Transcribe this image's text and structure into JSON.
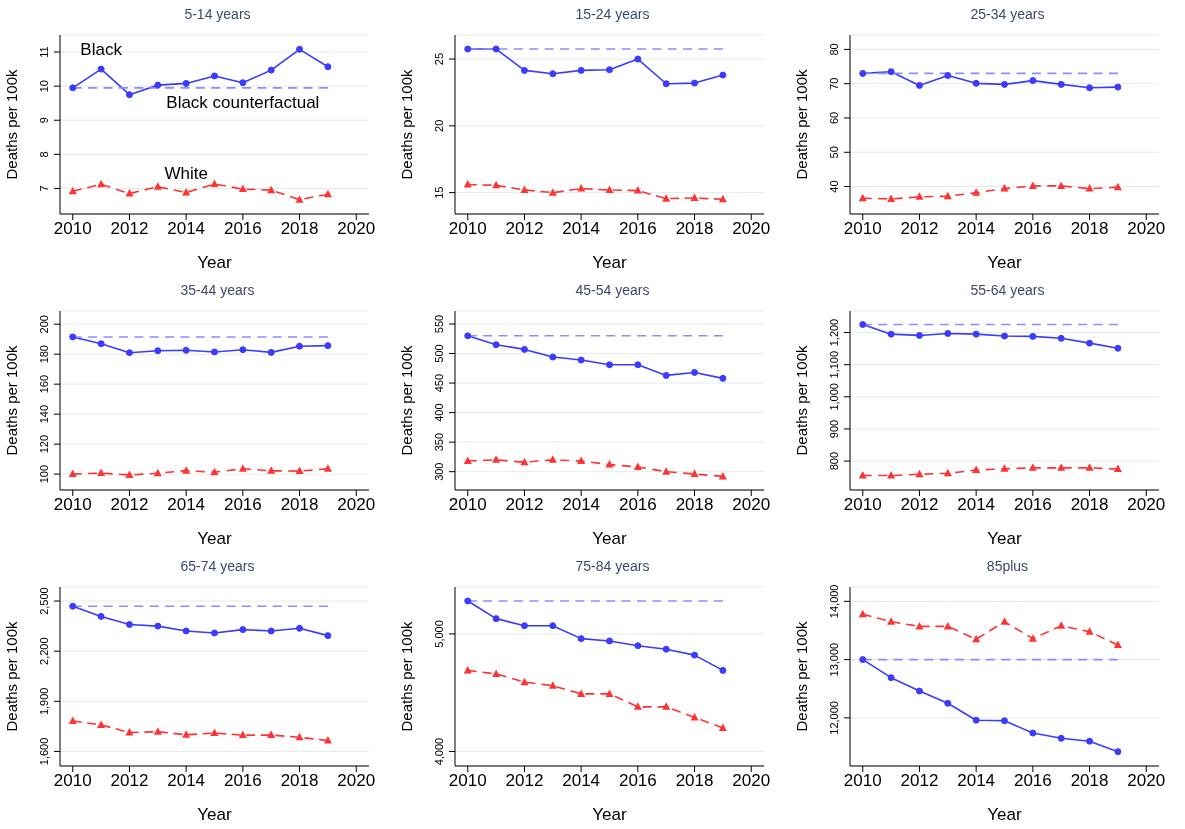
{
  "chart_data": [
    {
      "type": "line",
      "title": "5-14 years",
      "xlabel": "Year",
      "ylabel": "Deaths per 100k",
      "x": [
        2010,
        2011,
        2012,
        2013,
        2014,
        2015,
        2016,
        2017,
        2018,
        2019
      ],
      "series": [
        {
          "name": "Black",
          "color": "#3b3bff",
          "marker": "circle",
          "line_style": "solid",
          "values": [
            9.95,
            10.5,
            9.75,
            10.03,
            10.08,
            10.3,
            10.1,
            10.47,
            11.08,
            10.57
          ]
        },
        {
          "name": "Black counterfactual",
          "color": "#8c8cff",
          "marker": "none",
          "line_style": "dashed",
          "values": [
            9.95,
            9.95,
            9.95,
            9.95,
            9.95,
            9.95,
            9.95,
            9.95,
            9.95,
            9.95
          ]
        },
        {
          "name": "White",
          "color": "#ff3333",
          "marker": "triangle",
          "line_style": "dashed",
          "values": [
            6.92,
            7.12,
            6.85,
            7.05,
            6.88,
            7.13,
            6.98,
            6.95,
            6.67,
            6.83
          ]
        }
      ],
      "xlim": [
        2009.55,
        2020.45
      ],
      "xticks": [
        2010,
        2012,
        2014,
        2016,
        2018,
        2020
      ],
      "ylim": [
        6.25,
        11.5
      ],
      "yticks": [
        7,
        8,
        9,
        10,
        11
      ],
      "grid": "y",
      "legend": false
    },
    {
      "type": "line",
      "title": "15-24 years",
      "xlabel": "Year",
      "ylabel": "Deaths per 100k",
      "x": [
        2010,
        2011,
        2012,
        2013,
        2014,
        2015,
        2016,
        2017,
        2018,
        2019
      ],
      "series": [
        {
          "color": "#3b3bff",
          "marker": "circle",
          "line_style": "solid",
          "values": [
            25.75,
            25.75,
            24.15,
            23.9,
            24.15,
            24.2,
            25.0,
            23.15,
            23.2,
            23.8
          ]
        },
        {
          "color": "#8c8cff",
          "marker": "none",
          "line_style": "dashed",
          "values": [
            25.75,
            25.75,
            25.75,
            25.75,
            25.75,
            25.75,
            25.75,
            25.75,
            25.75,
            25.75
          ]
        },
        {
          "color": "#ff3333",
          "marker": "triangle",
          "line_style": "dashed",
          "values": [
            15.6,
            15.55,
            15.2,
            15.0,
            15.3,
            15.2,
            15.15,
            14.55,
            14.6,
            14.5
          ]
        }
      ],
      "xlim": [
        2009.55,
        2020.45
      ],
      "xticks": [
        2010,
        2012,
        2014,
        2016,
        2018,
        2020
      ],
      "ylim": [
        13.4,
        26.8
      ],
      "yticks": [
        15,
        20,
        25
      ],
      "grid": "y",
      "legend": false
    },
    {
      "type": "line",
      "title": "25-34 years",
      "xlabel": "Year",
      "ylabel": "Deaths per 100k",
      "x": [
        2010,
        2011,
        2012,
        2013,
        2014,
        2015,
        2016,
        2017,
        2018,
        2019
      ],
      "series": [
        {
          "color": "#3b3bff",
          "marker": "circle",
          "line_style": "solid",
          "values": [
            73,
            73.5,
            69.5,
            72.4,
            70.1,
            69.8,
            70.9,
            69.8,
            68.8,
            69
          ]
        },
        {
          "color": "#8c8cff",
          "marker": "none",
          "line_style": "dashed",
          "values": [
            73,
            73,
            73,
            73,
            73,
            73,
            73,
            73,
            73,
            73
          ]
        },
        {
          "color": "#ff3333",
          "marker": "triangle",
          "line_style": "dashed",
          "values": [
            36.6,
            36.4,
            37,
            37.2,
            38.2,
            39.4,
            40.2,
            40.2,
            39.4,
            39.8
          ]
        }
      ],
      "xlim": [
        2009.55,
        2020.45
      ],
      "xticks": [
        2010,
        2012,
        2014,
        2016,
        2018,
        2020
      ],
      "ylim": [
        32,
        84.2
      ],
      "yticks": [
        40,
        50,
        60,
        70,
        80
      ],
      "grid": "y",
      "legend": false
    },
    {
      "type": "line",
      "title": "35-44 years",
      "xlabel": "Year",
      "ylabel": "Deaths per 100k",
      "x": [
        2010,
        2011,
        2012,
        2013,
        2014,
        2015,
        2016,
        2017,
        2018,
        2019
      ],
      "series": [
        {
          "color": "#3b3bff",
          "marker": "circle",
          "line_style": "solid",
          "values": [
            191.5,
            187,
            181,
            182.3,
            182.6,
            181.5,
            183,
            181.2,
            185.3,
            185.7
          ]
        },
        {
          "color": "#8c8cff",
          "marker": "none",
          "line_style": "dashed",
          "values": [
            191.5,
            191.5,
            191.5,
            191.5,
            191.5,
            191.5,
            191.5,
            191.5,
            191.5,
            191.5
          ]
        },
        {
          "color": "#ff3333",
          "marker": "triangle",
          "line_style": "dashed",
          "values": [
            100,
            100.7,
            99.4,
            100.6,
            102.3,
            101.2,
            103.6,
            102.2,
            102,
            103.5
          ]
        }
      ],
      "xlim": [
        2009.55,
        2020.45
      ],
      "xticks": [
        2010,
        2012,
        2014,
        2016,
        2018,
        2020
      ],
      "ylim": [
        89.4,
        208.8
      ],
      "yticks": [
        100,
        120,
        140,
        160,
        180,
        200
      ],
      "grid": "y",
      "legend": false
    },
    {
      "type": "line",
      "title": "45-54 years",
      "xlabel": "Year",
      "ylabel": "Deaths per 100k",
      "x": [
        2010,
        2011,
        2012,
        2013,
        2014,
        2015,
        2016,
        2017,
        2018,
        2019
      ],
      "series": [
        {
          "color": "#3b3bff",
          "marker": "circle",
          "line_style": "solid",
          "values": [
            530,
            515,
            507,
            494,
            489,
            481,
            481,
            463,
            468,
            458
          ]
        },
        {
          "color": "#8c8cff",
          "marker": "none",
          "line_style": "dashed",
          "values": [
            530,
            530,
            530,
            530,
            530,
            530,
            530,
            530,
            530,
            530
          ]
        },
        {
          "color": "#ff3333",
          "marker": "triangle",
          "line_style": "dashed",
          "values": [
            318,
            320,
            316,
            320,
            318,
            312,
            308,
            300,
            296,
            292
          ]
        }
      ],
      "xlim": [
        2009.55,
        2020.45
      ],
      "xticks": [
        2010,
        2012,
        2014,
        2016,
        2018,
        2020
      ],
      "ylim": [
        269,
        572
      ],
      "yticks": [
        300,
        350,
        400,
        450,
        500,
        550
      ],
      "grid": "y",
      "legend": false
    },
    {
      "type": "line",
      "title": "55-64 years",
      "xlabel": "Year",
      "ylabel": "Deaths per 100k",
      "x": [
        2010,
        2011,
        2012,
        2013,
        2014,
        2015,
        2016,
        2017,
        2018,
        2019
      ],
      "series": [
        {
          "color": "#3b3bff",
          "marker": "circle",
          "line_style": "solid",
          "values": [
            1225,
            1195,
            1191,
            1197,
            1195,
            1189,
            1188,
            1182,
            1167,
            1151
          ]
        },
        {
          "color": "#8c8cff",
          "marker": "none",
          "line_style": "dashed",
          "values": [
            1225,
            1225,
            1225,
            1225,
            1225,
            1225,
            1225,
            1225,
            1225,
            1225
          ]
        },
        {
          "color": "#ff3333",
          "marker": "triangle",
          "line_style": "dashed",
          "values": [
            755,
            755,
            759,
            762,
            772,
            776,
            779,
            779,
            779,
            775
          ]
        }
      ],
      "xlim": [
        2009.55,
        2020.45
      ],
      "xticks": [
        2010,
        2012,
        2014,
        2016,
        2018,
        2020
      ],
      "ylim": [
        710,
        1267
      ],
      "yticks": [
        800,
        900,
        {
          "value": 1000,
          "label": "1,000"
        },
        {
          "value": 1100,
          "label": "1,100"
        },
        {
          "value": 1200,
          "label": "1,200"
        }
      ],
      "grid": "y",
      "legend": false
    },
    {
      "type": "line",
      "title": "65-74 years",
      "xlabel": "Year",
      "ylabel": "Deaths per 100k",
      "x": [
        2010,
        2011,
        2012,
        2013,
        2014,
        2015,
        2016,
        2017,
        2018,
        2019
      ],
      "series": [
        {
          "color": "#3b3bff",
          "marker": "circle",
          "line_style": "solid",
          "values": [
            2469,
            2408,
            2360,
            2350,
            2321,
            2309,
            2329,
            2321,
            2337,
            2293
          ]
        },
        {
          "color": "#8c8cff",
          "marker": "none",
          "line_style": "dashed",
          "values": [
            2469,
            2469,
            2469,
            2469,
            2469,
            2469,
            2469,
            2469,
            2469,
            2469
          ]
        },
        {
          "color": "#ff3333",
          "marker": "triangle",
          "line_style": "dashed",
          "values": [
            1782,
            1759,
            1713,
            1718,
            1700,
            1710,
            1698,
            1698,
            1685,
            1665
          ]
        }
      ],
      "xlim": [
        2009.55,
        2020.45
      ],
      "xticks": [
        2010,
        2012,
        2014,
        2016,
        2018,
        2020
      ],
      "ylim": [
        1513,
        2584
      ],
      "yticks": [
        {
          "value": 1600,
          "label": "1,600"
        },
        {
          "value": 1900,
          "label": "1,900"
        },
        {
          "value": 2200,
          "label": "2,200"
        },
        {
          "value": 2500,
          "label": "2,500"
        }
      ],
      "grid": "y",
      "legend": false
    },
    {
      "type": "line",
      "title": "75-84 years",
      "xlabel": "Year",
      "ylabel": "Deaths per 100k",
      "x": [
        2010,
        2011,
        2012,
        2013,
        2014,
        2015,
        2016,
        2017,
        2018,
        2019
      ],
      "series": [
        {
          "color": "#3b3bff",
          "marker": "circle",
          "line_style": "solid",
          "values": [
            5280,
            5130,
            5070,
            5070,
            4960,
            4940,
            4900,
            4870,
            4820,
            4690
          ]
        },
        {
          "color": "#8c8cff",
          "marker": "none",
          "line_style": "dashed",
          "values": [
            5280,
            5280,
            5280,
            5280,
            5280,
            5280,
            5280,
            5280,
            5280,
            5280
          ]
        },
        {
          "color": "#ff3333",
          "marker": "triangle",
          "line_style": "dashed",
          "values": [
            4690,
            4660,
            4590,
            4560,
            4490,
            4490,
            4380,
            4380,
            4290,
            4200
          ]
        }
      ],
      "xlim": [
        2009.55,
        2020.45
      ],
      "xticks": [
        2010,
        2012,
        2014,
        2016,
        2018,
        2020
      ],
      "ylim": [
        3877,
        5399
      ],
      "yticks": [
        {
          "value": 4000,
          "label": "4,000"
        },
        {
          "value": 5000,
          "label": "5,000"
        }
      ],
      "grid": "y",
      "legend": false
    },
    {
      "type": "line",
      "title": "85plus",
      "xlabel": "Year",
      "ylabel": "Deaths per 100k",
      "x": [
        2010,
        2011,
        2012,
        2013,
        2014,
        2015,
        2016,
        2017,
        2018,
        2019
      ],
      "series": [
        {
          "color": "#3b3bff",
          "marker": "circle",
          "line_style": "solid",
          "values": [
            13000,
            12690,
            12460,
            12250,
            11960,
            11950,
            11740,
            11650,
            11600,
            11420
          ]
        },
        {
          "color": "#8c8cff",
          "marker": "none",
          "line_style": "dashed",
          "values": [
            13000,
            13000,
            13000,
            13000,
            13000,
            13000,
            13000,
            13000,
            13000,
            13000
          ]
        },
        {
          "color": "#ff3333",
          "marker": "triangle",
          "line_style": "dashed",
          "values": [
            13780,
            13650,
            13570,
            13570,
            13350,
            13650,
            13360,
            13580,
            13480,
            13250
          ]
        }
      ],
      "xlim": [
        2009.55,
        2020.45
      ],
      "xticks": [
        2010,
        2012,
        2014,
        2016,
        2018,
        2020
      ],
      "ylim": [
        11174,
        14246
      ],
      "yticks": [
        {
          "value": 12000,
          "label": "12,000"
        },
        {
          "value": 13000,
          "label": "13,000"
        },
        {
          "value": 14000,
          "label": "14,000"
        }
      ],
      "grid": "y",
      "legend": false
    }
  ]
}
